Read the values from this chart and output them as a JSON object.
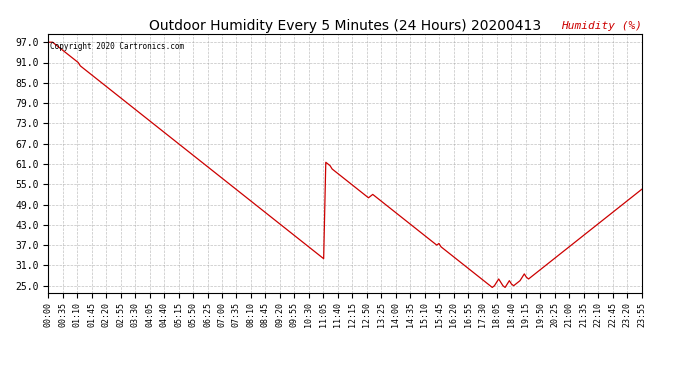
{
  "title": "Outdoor Humidity Every 5 Minutes (24 Hours) 20200413",
  "ylabel": "Humidity (%)",
  "ylabel_color": "#cc0000",
  "copyright": "Copyright 2020 Cartronics.com",
  "line_color": "#cc0000",
  "background_color": "#ffffff",
  "grid_color": "#999999",
  "ylim": [
    23.0,
    99.5
  ],
  "yticks": [
    25.0,
    31.0,
    37.0,
    43.0,
    49.0,
    55.0,
    61.0,
    67.0,
    73.0,
    79.0,
    85.0,
    91.0,
    97.0
  ],
  "humidity_data": [
    97.0,
    97.0,
    97.0,
    96.5,
    96.0,
    95.5,
    95.0,
    94.5,
    94.0,
    93.5,
    93.0,
    92.5,
    92.0,
    91.5,
    91.0,
    90.0,
    89.5,
    89.0,
    88.5,
    88.0,
    87.5,
    87.0,
    86.5,
    86.0,
    85.5,
    85.0,
    84.5,
    84.0,
    83.5,
    83.0,
    82.5,
    82.0,
    81.5,
    81.0,
    80.5,
    80.0,
    79.5,
    79.0,
    78.5,
    78.0,
    77.5,
    77.0,
    76.5,
    76.0,
    75.5,
    75.0,
    74.5,
    74.0,
    73.5,
    73.0,
    72.5,
    72.0,
    71.5,
    71.0,
    70.5,
    70.0,
    69.5,
    69.0,
    68.5,
    68.0,
    67.5,
    67.0,
    66.5,
    66.0,
    65.5,
    65.0,
    64.5,
    64.0,
    63.5,
    63.0,
    62.5,
    62.0,
    61.5,
    61.0,
    60.5,
    60.0,
    59.5,
    59.0,
    58.5,
    58.0,
    57.5,
    57.0,
    56.5,
    56.0,
    55.5,
    55.0,
    54.5,
    54.0,
    53.5,
    53.0,
    52.5,
    52.0,
    51.5,
    51.0,
    50.5,
    50.0,
    49.5,
    49.0,
    48.5,
    48.0,
    47.5,
    47.0,
    46.5,
    46.0,
    45.5,
    45.0,
    44.5,
    44.0,
    43.5,
    43.0,
    42.5,
    42.0,
    41.5,
    41.0,
    40.5,
    40.0,
    39.5,
    39.0,
    38.5,
    38.0,
    37.5,
    37.0,
    36.5,
    36.0,
    35.5,
    35.0,
    34.5,
    34.0,
    33.5,
    33.0,
    61.5,
    61.0,
    60.5,
    59.5,
    59.0,
    58.5,
    58.0,
    57.5,
    57.0,
    56.5,
    56.0,
    55.5,
    55.0,
    54.5,
    54.0,
    53.5,
    53.0,
    52.5,
    52.0,
    51.5,
    51.0,
    51.5,
    52.0,
    51.5,
    51.0,
    50.5,
    50.0,
    49.5,
    49.0,
    48.5,
    48.0,
    47.5,
    47.0,
    46.5,
    46.0,
    45.5,
    45.0,
    44.5,
    44.0,
    43.5,
    43.0,
    42.5,
    42.0,
    41.5,
    41.0,
    40.5,
    40.0,
    39.5,
    39.0,
    38.5,
    38.0,
    37.5,
    37.0,
    37.5,
    36.5,
    36.0,
    35.5,
    35.0,
    34.5,
    34.0,
    33.5,
    33.0,
    32.5,
    32.0,
    31.5,
    31.0,
    30.5,
    30.0,
    29.5,
    29.0,
    28.5,
    28.0,
    27.5,
    27.0,
    26.5,
    26.0,
    25.5,
    25.0,
    24.5,
    25.0,
    26.0,
    27.0,
    26.0,
    25.0,
    24.5,
    25.5,
    26.5,
    25.5,
    25.0,
    25.5,
    26.0,
    26.5,
    27.5,
    28.5,
    27.5,
    27.0,
    27.5,
    28.0,
    28.5,
    29.0,
    29.5,
    30.0,
    30.5,
    31.0,
    31.5,
    32.0,
    32.5,
    33.0,
    33.5,
    34.0,
    34.5,
    35.0,
    35.5,
    36.0,
    36.5,
    37.0,
    37.5,
    38.0,
    38.5,
    39.0,
    39.5,
    40.0,
    40.5,
    41.0,
    41.5,
    42.0,
    42.5,
    43.0,
    43.5,
    44.0,
    44.5,
    45.0,
    45.5,
    46.0,
    46.5,
    47.0,
    47.5,
    48.0,
    48.5,
    49.0,
    49.5,
    50.0,
    50.5,
    51.0,
    51.5,
    52.0,
    52.5,
    53.0,
    53.5
  ],
  "xtick_labels": [
    "00:00",
    "00:35",
    "01:10",
    "01:45",
    "02:20",
    "02:55",
    "03:30",
    "04:05",
    "04:40",
    "05:15",
    "05:50",
    "06:25",
    "07:00",
    "07:35",
    "08:10",
    "08:45",
    "09:20",
    "09:55",
    "10:30",
    "11:05",
    "11:40",
    "12:15",
    "12:50",
    "13:25",
    "14:00",
    "14:35",
    "15:10",
    "15:45",
    "16:20",
    "16:55",
    "17:30",
    "18:05",
    "18:40",
    "19:15",
    "19:50",
    "20:25",
    "21:00",
    "21:35",
    "22:10",
    "22:45",
    "23:20",
    "23:55"
  ],
  "title_fontsize": 10,
  "tick_fontsize": 6,
  "ylabel_fontsize": 8
}
